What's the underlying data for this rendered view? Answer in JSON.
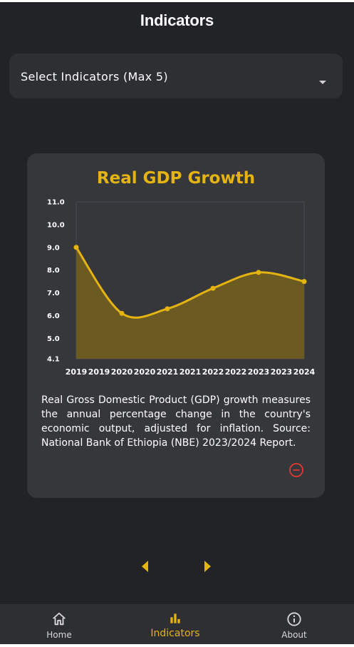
{
  "header": {
    "title": "Indicators"
  },
  "selector": {
    "label": "Select Indicators (Max 5)"
  },
  "card": {
    "title": "Real GDP Growth",
    "description": "Real Gross Domestic Product (GDP) growth measures the annual percentage change in the country's economic output, adjusted for inflation. Source: National Bank of Ethiopia (NBE) 2023/2024 Report."
  },
  "chart_data": {
    "type": "area",
    "x": [
      "2019",
      "2020",
      "2021",
      "2022",
      "2023",
      "2024"
    ],
    "values": [
      9.0,
      6.1,
      6.3,
      7.2,
      7.9,
      7.5
    ],
    "x_tick_labels": [
      "2019",
      "2019",
      "2020",
      "2020",
      "2021",
      "2021",
      "2022",
      "2022",
      "2023",
      "2023",
      "2024"
    ],
    "y_ticks": [
      "4.1",
      "5.0",
      "6.0",
      "7.0",
      "8.0",
      "9.0",
      "10.0",
      "11.0"
    ],
    "ylim": [
      4.1,
      11.0
    ],
    "line_color": "#e6b412",
    "fill_color": "#6b5a22",
    "grid": false
  },
  "colors": {
    "accent": "#e6b412",
    "danger": "#e53935",
    "background": "#222327",
    "card": "#36373b"
  },
  "nav": {
    "items": [
      {
        "label": "Home",
        "icon": "home-icon"
      },
      {
        "label": "Indicators",
        "icon": "bar-chart-icon"
      },
      {
        "label": "About",
        "icon": "info-icon"
      }
    ]
  }
}
